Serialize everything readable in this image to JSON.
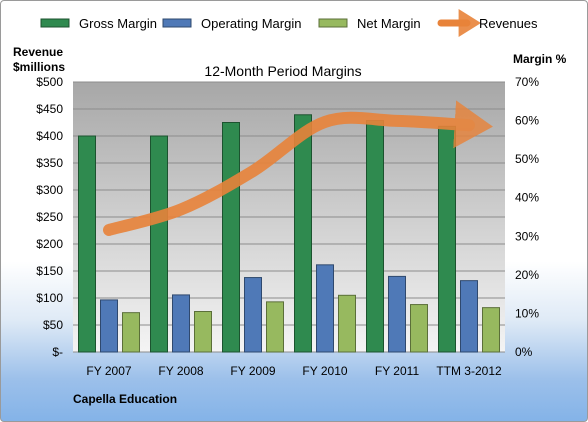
{
  "chart_data": {
    "type": "bar",
    "title": "12-Month Period Margins",
    "company_label": "Capella Education",
    "y_left_label": [
      "Revenue",
      "$millions"
    ],
    "y_right_label": "Margin %",
    "categories": [
      "FY 2007",
      "FY 2008",
      "FY 2009",
      "FY 2010",
      "FY 2011",
      "TTM 3-2012"
    ],
    "y_left_ticks": [
      "$-",
      "$50",
      "$100",
      "$150",
      "$200",
      "$250",
      "$300",
      "$350",
      "$400",
      "$450",
      "$500"
    ],
    "y_right_ticks": [
      "0%",
      "10%",
      "20%",
      "30%",
      "40%",
      "50%",
      "60%",
      "70%"
    ],
    "ylim_left": [
      0,
      500
    ],
    "ylim_right": [
      0,
      70
    ],
    "grid": true,
    "legend_position": "top",
    "series": [
      {
        "name": "Gross Margin",
        "kind": "bar",
        "axis": "right",
        "color": "#2f8a4f",
        "values": [
          56,
          56,
          59.5,
          61.5,
          60,
          58.5
        ]
      },
      {
        "name": "Operating Margin",
        "kind": "bar",
        "axis": "right",
        "color": "#4f79b7",
        "values": [
          13.5,
          14.8,
          19.3,
          22.6,
          19.6,
          18.5
        ]
      },
      {
        "name": "Net Margin",
        "kind": "bar",
        "axis": "right",
        "color": "#97b95f",
        "values": [
          10.2,
          10.5,
          13,
          14.7,
          12.3,
          11.5
        ]
      },
      {
        "name": "Revenues",
        "kind": "line",
        "axis": "left",
        "color": "#e8833a",
        "values": [
          226,
          264,
          335,
          426,
          428,
          420
        ]
      }
    ]
  }
}
